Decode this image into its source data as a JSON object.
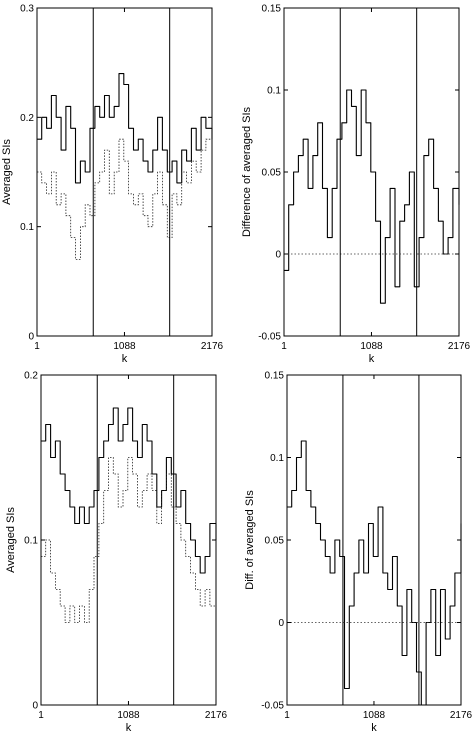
{
  "chart_data": [
    {
      "type": "line",
      "xlabel": "k",
      "ylabel": "Averaged SIs",
      "xlim": [
        1,
        2176
      ],
      "ylim": [
        0,
        0.3
      ],
      "xticks": [
        1,
        1088,
        2176
      ],
      "xtick_labels": [
        "1",
        "1088",
        "2176"
      ],
      "yticks": [
        0,
        0.1,
        0.2,
        0.3
      ],
      "ytick_labels": [
        "0",
        "0.1",
        "0.2",
        "0.3"
      ],
      "vertical_lines": [
        700,
        1650
      ],
      "zero_line": false,
      "series": [
        {
          "style": "solid",
          "x": [
            1,
            60,
            120,
            180,
            240,
            300,
            360,
            420,
            480,
            540,
            600,
            660,
            720,
            780,
            840,
            900,
            960,
            1020,
            1080,
            1140,
            1200,
            1260,
            1320,
            1380,
            1440,
            1500,
            1560,
            1620,
            1680,
            1740,
            1800,
            1860,
            1920,
            1980,
            2040,
            2100,
            2176
          ],
          "y": [
            0.18,
            0.2,
            0.19,
            0.22,
            0.2,
            0.17,
            0.21,
            0.19,
            0.14,
            0.16,
            0.15,
            0.19,
            0.21,
            0.2,
            0.22,
            0.2,
            0.21,
            0.24,
            0.23,
            0.19,
            0.17,
            0.18,
            0.16,
            0.15,
            0.17,
            0.2,
            0.17,
            0.15,
            0.16,
            0.14,
            0.17,
            0.16,
            0.19,
            0.17,
            0.2,
            0.19,
            0.18
          ]
        },
        {
          "style": "dotted",
          "x": [
            1,
            60,
            120,
            180,
            240,
            300,
            360,
            420,
            480,
            540,
            600,
            660,
            720,
            780,
            840,
            900,
            960,
            1020,
            1080,
            1140,
            1200,
            1260,
            1320,
            1380,
            1440,
            1500,
            1560,
            1620,
            1680,
            1740,
            1800,
            1860,
            1920,
            1980,
            2040,
            2100,
            2176
          ],
          "y": [
            0.15,
            0.14,
            0.13,
            0.15,
            0.12,
            0.13,
            0.11,
            0.09,
            0.07,
            0.1,
            0.12,
            0.11,
            0.14,
            0.15,
            0.17,
            0.13,
            0.15,
            0.18,
            0.16,
            0.13,
            0.12,
            0.13,
            0.11,
            0.1,
            0.13,
            0.15,
            0.12,
            0.09,
            0.13,
            0.12,
            0.15,
            0.14,
            0.16,
            0.15,
            0.17,
            0.18,
            0.17
          ]
        }
      ]
    },
    {
      "type": "line",
      "xlabel": "k",
      "ylabel": "Difference of averaged SIs",
      "xlim": [
        1,
        2176
      ],
      "ylim": [
        -0.05,
        0.15
      ],
      "xticks": [
        1,
        1088,
        2176
      ],
      "xtick_labels": [
        "1",
        "1088",
        "2176"
      ],
      "yticks": [
        -0.05,
        0,
        0.05,
        0.1,
        0.15
      ],
      "ytick_labels": [
        "-0.05",
        "0",
        "0.05",
        "0.1",
        "0.15"
      ],
      "vertical_lines": [
        700,
        1650
      ],
      "zero_line": true,
      "series": [
        {
          "style": "solid",
          "x": [
            1,
            60,
            120,
            180,
            240,
            300,
            360,
            420,
            480,
            540,
            600,
            660,
            720,
            780,
            840,
            900,
            960,
            1020,
            1080,
            1140,
            1200,
            1260,
            1320,
            1380,
            1440,
            1500,
            1560,
            1620,
            1680,
            1740,
            1800,
            1860,
            1920,
            1980,
            2040,
            2100,
            2176
          ],
          "y": [
            -0.01,
            0.03,
            0.05,
            0.06,
            0.07,
            0.04,
            0.06,
            0.08,
            0.04,
            0.01,
            0.04,
            0.07,
            0.08,
            0.1,
            0.09,
            0.06,
            0.1,
            0.08,
            0.05,
            0.02,
            -0.03,
            0.01,
            0.04,
            -0.02,
            0.02,
            0.03,
            0.05,
            -0.02,
            0.01,
            0.06,
            0.07,
            0.04,
            0.02,
            0.0,
            0.01,
            0.04,
            0.03
          ]
        }
      ]
    },
    {
      "type": "line",
      "xlabel": "k",
      "ylabel": "Averaged SIs",
      "xlim": [
        1,
        2176
      ],
      "ylim": [
        0,
        0.2
      ],
      "xticks": [
        1,
        1088,
        2176
      ],
      "xtick_labels": [
        "1",
        "1088",
        "2176"
      ],
      "yticks": [
        0,
        0.1,
        0.2
      ],
      "ytick_labels": [
        "0",
        "0.1",
        "0.2"
      ],
      "vertical_lines": [
        700,
        1650
      ],
      "zero_line": false,
      "series": [
        {
          "style": "solid",
          "x": [
            1,
            60,
            120,
            180,
            240,
            300,
            360,
            420,
            480,
            540,
            600,
            660,
            720,
            780,
            840,
            900,
            960,
            1020,
            1080,
            1140,
            1200,
            1260,
            1320,
            1380,
            1440,
            1500,
            1560,
            1620,
            1680,
            1740,
            1800,
            1860,
            1920,
            1980,
            2040,
            2100,
            2176
          ],
          "y": [
            0.16,
            0.17,
            0.15,
            0.16,
            0.14,
            0.13,
            0.12,
            0.11,
            0.12,
            0.11,
            0.12,
            0.13,
            0.15,
            0.16,
            0.17,
            0.18,
            0.16,
            0.17,
            0.18,
            0.16,
            0.15,
            0.17,
            0.16,
            0.14,
            0.12,
            0.13,
            0.15,
            0.14,
            0.12,
            0.13,
            0.11,
            0.1,
            0.09,
            0.08,
            0.09,
            0.11,
            0.1
          ]
        },
        {
          "style": "dotted",
          "x": [
            1,
            60,
            120,
            180,
            240,
            300,
            360,
            420,
            480,
            540,
            600,
            660,
            720,
            780,
            840,
            900,
            960,
            1020,
            1080,
            1140,
            1200,
            1260,
            1320,
            1380,
            1440,
            1500,
            1560,
            1620,
            1680,
            1740,
            1800,
            1860,
            1920,
            1980,
            2040,
            2100,
            2176
          ],
          "y": [
            0.09,
            0.1,
            0.08,
            0.07,
            0.06,
            0.05,
            0.06,
            0.05,
            0.06,
            0.05,
            0.07,
            0.09,
            0.11,
            0.13,
            0.15,
            0.14,
            0.12,
            0.13,
            0.15,
            0.14,
            0.12,
            0.13,
            0.14,
            0.13,
            0.11,
            0.13,
            0.14,
            0.12,
            0.11,
            0.1,
            0.09,
            0.08,
            0.07,
            0.06,
            0.07,
            0.06,
            0.05
          ]
        }
      ]
    },
    {
      "type": "line",
      "xlabel": "k",
      "ylabel": "Diff. of averaged SIs",
      "xlim": [
        1,
        2176
      ],
      "ylim": [
        -0.05,
        0.15
      ],
      "xticks": [
        1,
        1088,
        2176
      ],
      "xtick_labels": [
        "1",
        "1088",
        "2176"
      ],
      "yticks": [
        -0.05,
        0,
        0.05,
        0.1,
        0.15
      ],
      "ytick_labels": [
        "-0.05",
        "0",
        "0.05",
        "0.1",
        "0.15"
      ],
      "vertical_lines": [
        700,
        1650
      ],
      "zero_line": true,
      "series": [
        {
          "style": "solid",
          "x": [
            1,
            60,
            120,
            180,
            240,
            300,
            360,
            420,
            480,
            540,
            600,
            660,
            720,
            780,
            840,
            900,
            960,
            1020,
            1080,
            1140,
            1200,
            1260,
            1320,
            1380,
            1440,
            1500,
            1560,
            1620,
            1680,
            1740,
            1800,
            1860,
            1920,
            1980,
            2040,
            2100,
            2176
          ],
          "y": [
            0.07,
            0.08,
            0.1,
            0.11,
            0.08,
            0.07,
            0.06,
            0.05,
            0.04,
            0.03,
            0.05,
            0.04,
            -0.04,
            0.01,
            0.03,
            0.05,
            0.03,
            0.06,
            0.04,
            0.07,
            0.03,
            0.02,
            0.04,
            0.01,
            -0.02,
            0.02,
            0.0,
            -0.03,
            -0.05,
            0.0,
            0.02,
            -0.02,
            0.02,
            -0.01,
            0.01,
            0.03,
            0.06
          ]
        }
      ]
    }
  ]
}
